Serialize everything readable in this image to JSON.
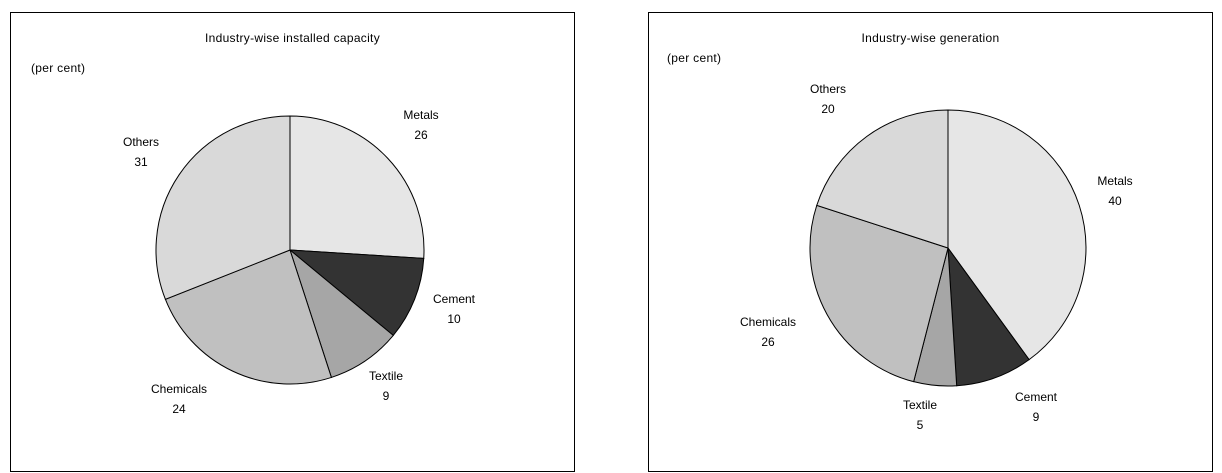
{
  "chart_data": [
    {
      "type": "pie",
      "title": "Industry-wise installed capacity",
      "unit_label": "(per cent)",
      "slices": [
        {
          "label": "Metals",
          "value": 26,
          "color": "#e6e6e6"
        },
        {
          "label": "Cement",
          "value": 10,
          "color": "#333333"
        },
        {
          "label": "Textile",
          "value": 9,
          "color": "#a6a6a6"
        },
        {
          "label": "Chemicals",
          "value": 24,
          "color": "#c0c0c0"
        },
        {
          "label": "Others",
          "value": 31,
          "color": "#d9d9d9"
        }
      ]
    },
    {
      "type": "pie",
      "title": "Industry-wise generation",
      "unit_label": "(per cent)",
      "slices": [
        {
          "label": "Metals",
          "value": 40,
          "color": "#e6e6e6"
        },
        {
          "label": "Cement",
          "value": 9,
          "color": "#333333"
        },
        {
          "label": "Textile",
          "value": 5,
          "color": "#a6a6a6"
        },
        {
          "label": "Chemicals",
          "value": 26,
          "color": "#c0c0c0"
        },
        {
          "label": "Others",
          "value": 20,
          "color": "#d9d9d9"
        }
      ]
    }
  ]
}
